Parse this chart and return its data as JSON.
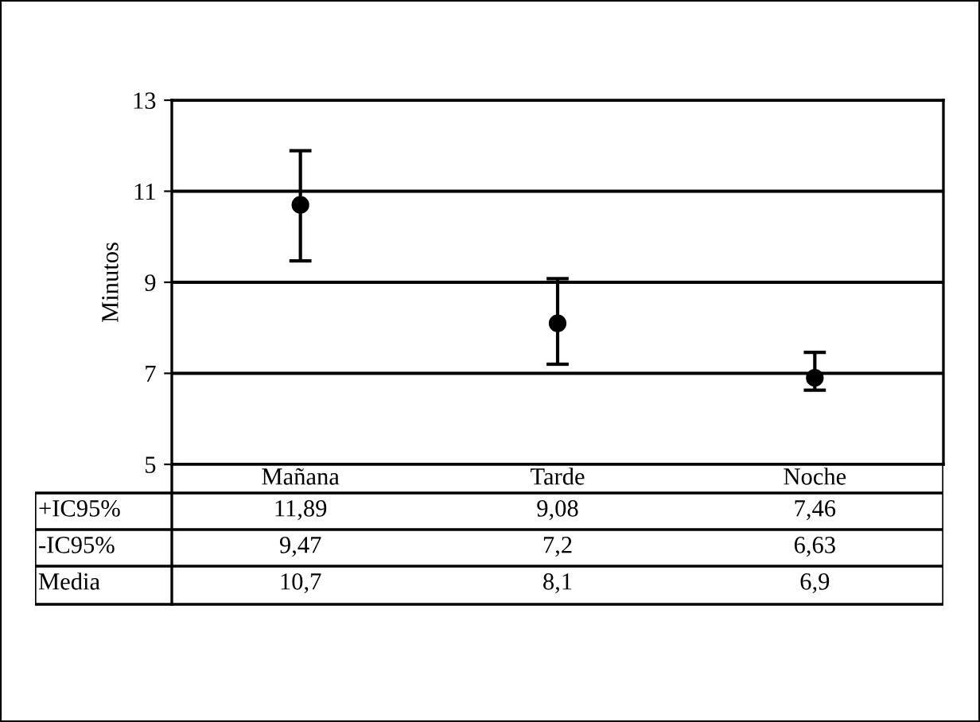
{
  "chart_data": {
    "type": "scatter",
    "ylabel": "Minutos",
    "categories": [
      "Mañana",
      "Tarde",
      "Noche"
    ],
    "series": [
      {
        "name": "Media",
        "color": "#000000",
        "values": [
          10.7,
          8.1,
          6.9
        ],
        "value_labels": [
          "10,7",
          "8,1",
          "6,9"
        ],
        "errors": [
          [
            9.47,
            11.89
          ],
          [
            7.2,
            9.08
          ],
          [
            6.63,
            7.46
          ]
        ]
      }
    ],
    "annotations": [
      "+IC95%",
      "-IC95%",
      "11,89",
      "9,08",
      "7,46",
      "9,47",
      "7,2",
      "6,63"
    ],
    "ylim": [
      5,
      13
    ],
    "yticks": [
      5,
      7,
      9,
      11,
      13
    ],
    "grid": "y",
    "legend": false,
    "marker": "circle"
  }
}
